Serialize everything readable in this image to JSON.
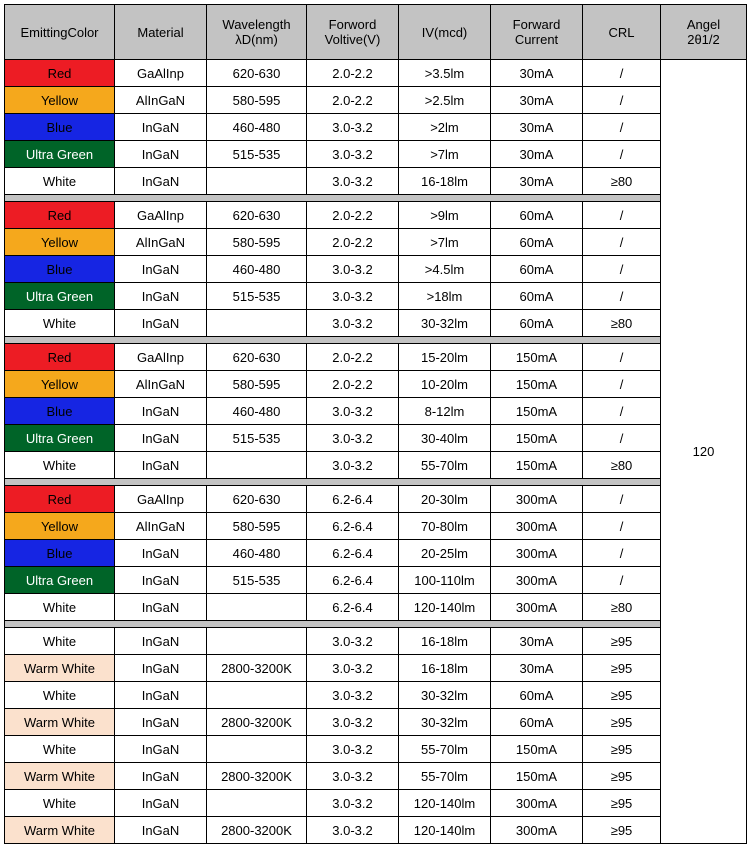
{
  "headers": {
    "emitting": "EmittingColor",
    "material": "Material",
    "wavelength": "Wavelength\nλD(nm)",
    "fv": "Forword\nVoltive(V)",
    "iv": "IV(mcd)",
    "fc": "Forward\nCurrent",
    "crl": "CRL",
    "angle": "Angel\n2θ1/2"
  },
  "angle_value": "120",
  "colors": {
    "Red": {
      "bg": "#ed1c24",
      "fg": "#000000"
    },
    "Yellow": {
      "bg": "#f5a81c",
      "fg": "#000000"
    },
    "Blue": {
      "bg": "#1625e3",
      "fg": "#000000"
    },
    "Ultra Green": {
      "bg": "#006428",
      "fg": "#ffffff"
    },
    "White": {
      "bg": "#ffffff",
      "fg": "#000000"
    },
    "Warm White": {
      "bg": "#fbe1cd",
      "fg": "#000000"
    }
  },
  "groups": [
    [
      {
        "color": "Red",
        "material": "GaAlInp",
        "wave": "620-630",
        "fv": "2.0-2.2",
        "iv": ">3.5lm",
        "fc": "30mA",
        "crl": "/"
      },
      {
        "color": "Yellow",
        "material": "AlInGaN",
        "wave": "580-595",
        "fv": "2.0-2.2",
        "iv": ">2.5lm",
        "fc": "30mA",
        "crl": "/"
      },
      {
        "color": "Blue",
        "material": "InGaN",
        "wave": "460-480",
        "fv": "3.0-3.2",
        "iv": ">2lm",
        "fc": "30mA",
        "crl": "/"
      },
      {
        "color": "Ultra Green",
        "material": "InGaN",
        "wave": "515-535",
        "fv": "3.0-3.2",
        "iv": ">7lm",
        "fc": "30mA",
        "crl": "/"
      },
      {
        "color": "White",
        "material": "InGaN",
        "wave": "",
        "fv": "3.0-3.2",
        "iv": "16-18lm",
        "fc": "30mA",
        "crl": "≥80"
      }
    ],
    [
      {
        "color": "Red",
        "material": "GaAlInp",
        "wave": "620-630",
        "fv": "2.0-2.2",
        "iv": ">9lm",
        "fc": "60mA",
        "crl": "/"
      },
      {
        "color": "Yellow",
        "material": "AlInGaN",
        "wave": "580-595",
        "fv": "2.0-2.2",
        "iv": ">7lm",
        "fc": "60mA",
        "crl": "/"
      },
      {
        "color": "Blue",
        "material": "InGaN",
        "wave": "460-480",
        "fv": "3.0-3.2",
        "iv": ">4.5lm",
        "fc": "60mA",
        "crl": "/"
      },
      {
        "color": "Ultra Green",
        "material": "InGaN",
        "wave": "515-535",
        "fv": "3.0-3.2",
        "iv": ">18lm",
        "fc": "60mA",
        "crl": "/"
      },
      {
        "color": "White",
        "material": "InGaN",
        "wave": "",
        "fv": "3.0-3.2",
        "iv": "30-32lm",
        "fc": "60mA",
        "crl": "≥80"
      }
    ],
    [
      {
        "color": "Red",
        "material": "GaAlInp",
        "wave": "620-630",
        "fv": "2.0-2.2",
        "iv": "15-20lm",
        "fc": "150mA",
        "crl": "/"
      },
      {
        "color": "Yellow",
        "material": "AlInGaN",
        "wave": "580-595",
        "fv": "2.0-2.2",
        "iv": "10-20lm",
        "fc": "150mA",
        "crl": "/"
      },
      {
        "color": "Blue",
        "material": "InGaN",
        "wave": "460-480",
        "fv": "3.0-3.2",
        "iv": "8-12lm",
        "fc": "150mA",
        "crl": "/"
      },
      {
        "color": "Ultra Green",
        "material": "InGaN",
        "wave": "515-535",
        "fv": "3.0-3.2",
        "iv": "30-40lm",
        "fc": "150mA",
        "crl": "/"
      },
      {
        "color": "White",
        "material": "InGaN",
        "wave": "",
        "fv": "3.0-3.2",
        "iv": "55-70lm",
        "fc": "150mA",
        "crl": "≥80"
      }
    ],
    [
      {
        "color": "Red",
        "material": "GaAlInp",
        "wave": "620-630",
        "fv": "6.2-6.4",
        "iv": "20-30lm",
        "fc": "300mA",
        "crl": "/"
      },
      {
        "color": "Yellow",
        "material": "AlInGaN",
        "wave": "580-595",
        "fv": "6.2-6.4",
        "iv": "70-80lm",
        "fc": "300mA",
        "crl": "/"
      },
      {
        "color": "Blue",
        "material": "InGaN",
        "wave": "460-480",
        "fv": "6.2-6.4",
        "iv": "20-25lm",
        "fc": "300mA",
        "crl": "/"
      },
      {
        "color": "Ultra Green",
        "material": "InGaN",
        "wave": "515-535",
        "fv": "6.2-6.4",
        "iv": "100-110lm",
        "fc": "300mA",
        "crl": "/"
      },
      {
        "color": "White",
        "material": "InGaN",
        "wave": "",
        "fv": "6.2-6.4",
        "iv": "120-140lm",
        "fc": "300mA",
        "crl": "≥80"
      }
    ],
    [
      {
        "color": "White",
        "material": "InGaN",
        "wave": "",
        "fv": "3.0-3.2",
        "iv": "16-18lm",
        "fc": "30mA",
        "crl": "≥95"
      },
      {
        "color": "Warm White",
        "material": "InGaN",
        "wave": "2800-3200K",
        "fv": "3.0-3.2",
        "iv": "16-18lm",
        "fc": "30mA",
        "crl": "≥95"
      },
      {
        "color": "White",
        "material": "InGaN",
        "wave": "",
        "fv": "3.0-3.2",
        "iv": "30-32lm",
        "fc": "60mA",
        "crl": "≥95"
      },
      {
        "color": "Warm White",
        "material": "InGaN",
        "wave": "2800-3200K",
        "fv": "3.0-3.2",
        "iv": "30-32lm",
        "fc": "60mA",
        "crl": "≥95"
      },
      {
        "color": "White",
        "material": "InGaN",
        "wave": "",
        "fv": "3.0-3.2",
        "iv": "55-70lm",
        "fc": "150mA",
        "crl": "≥95"
      },
      {
        "color": "Warm White",
        "material": "InGaN",
        "wave": "2800-3200K",
        "fv": "3.0-3.2",
        "iv": "55-70lm",
        "fc": "150mA",
        "crl": "≥95"
      },
      {
        "color": "White",
        "material": "InGaN",
        "wave": "",
        "fv": "3.0-3.2",
        "iv": "120-140lm",
        "fc": "300mA",
        "crl": "≥95"
      },
      {
        "color": "Warm White",
        "material": "InGaN",
        "wave": "2800-3200K",
        "fv": "3.0-3.2",
        "iv": "120-140lm",
        "fc": "300mA",
        "crl": "≥95"
      }
    ]
  ]
}
